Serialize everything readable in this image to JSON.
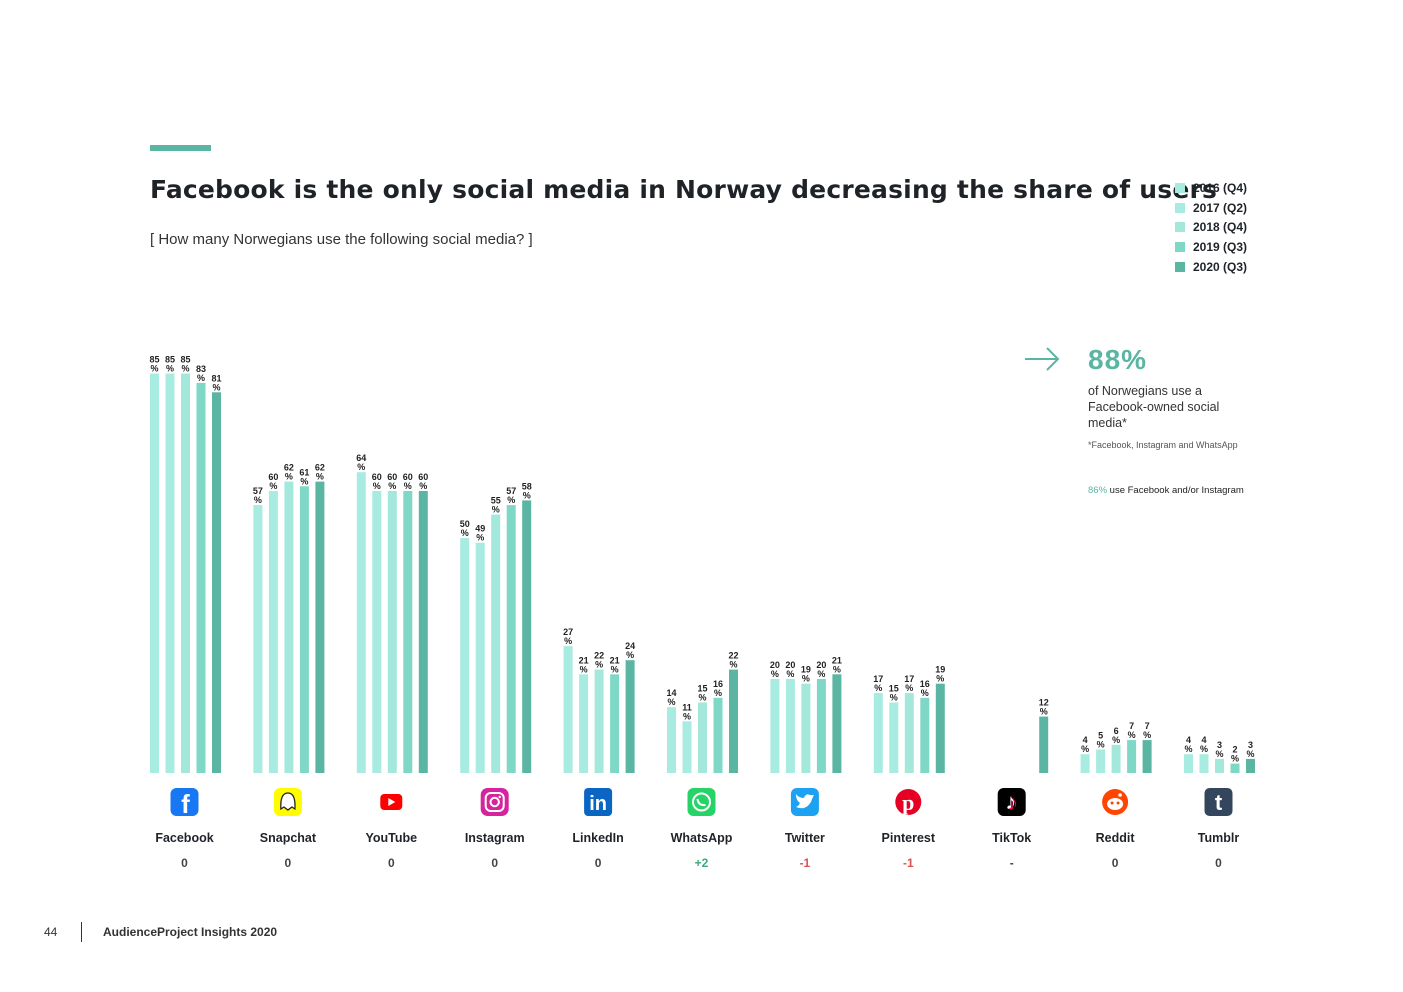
{
  "header": {
    "title": "Facebook is the only social media in Norway decreasing the share of users",
    "subtitle": "[ How many Norwegians use the following social media? ]"
  },
  "legend": [
    {
      "label": "2016 (Q4)",
      "color": "#a8ebe0"
    },
    {
      "label": "2017 (Q2)",
      "color": "#a8ebe0"
    },
    {
      "label": "2018 (Q4)",
      "color": "#a4e8dc"
    },
    {
      "label": "2019 (Q3)",
      "color": "#7fd8c6"
    },
    {
      "label": "2020 (Q3)",
      "color": "#5bb5a3"
    }
  ],
  "callout": {
    "big_value": "88%",
    "text": "of Norwegians use a Facebook-owned social media*",
    "footnote": "*Facebook, Instagram and WhatsApp",
    "note_pct": "86%",
    "note_text": " use Facebook and/or Instagram"
  },
  "footer": {
    "page": "44",
    "text": "AudienceProject Insights 2020"
  },
  "colors": {
    "accent": "#5bb5a3",
    "positive": "#3aab78",
    "negative": "#d9534f",
    "neutral": "#444444"
  },
  "chart_data": {
    "type": "bar",
    "title": "Facebook is the only social media in Norway decreasing the share of users",
    "subtitle": "[ How many Norwegians use the following social media? ]",
    "ylabel": "",
    "ylim": [
      0,
      85
    ],
    "unit": "%",
    "grid": false,
    "legend_position": "top-right",
    "categories": [
      "Facebook",
      "Snapchat",
      "YouTube",
      "Instagram",
      "LinkedIn",
      "WhatsApp",
      "Twitter",
      "Pinterest",
      "TikTok",
      "Reddit",
      "Tumblr"
    ],
    "changes": [
      "0",
      "0",
      "0",
      "0",
      "0",
      "+2",
      "-1",
      "-1",
      "-",
      "0",
      "0"
    ],
    "icons": [
      "facebook-icon",
      "snapchat-icon",
      "youtube-icon",
      "instagram-icon",
      "linkedin-icon",
      "whatsapp-icon",
      "twitter-icon",
      "pinterest-icon",
      "tiktok-icon",
      "reddit-icon",
      "tumblr-icon"
    ],
    "series": [
      {
        "name": "2016 (Q4)",
        "values": [
          85,
          57,
          64,
          50,
          27,
          14,
          20,
          17,
          null,
          4,
          4
        ]
      },
      {
        "name": "2017 (Q2)",
        "values": [
          85,
          60,
          60,
          49,
          21,
          11,
          20,
          15,
          null,
          5,
          4
        ]
      },
      {
        "name": "2018 (Q4)",
        "values": [
          85,
          62,
          60,
          55,
          22,
          15,
          19,
          17,
          null,
          6,
          3
        ]
      },
      {
        "name": "2019 (Q3)",
        "values": [
          83,
          61,
          60,
          57,
          21,
          16,
          20,
          16,
          null,
          7,
          2
        ]
      },
      {
        "name": "2020 (Q3)",
        "values": [
          81,
          62,
          60,
          58,
          24,
          22,
          21,
          19,
          12,
          7,
          3
        ]
      }
    ]
  }
}
